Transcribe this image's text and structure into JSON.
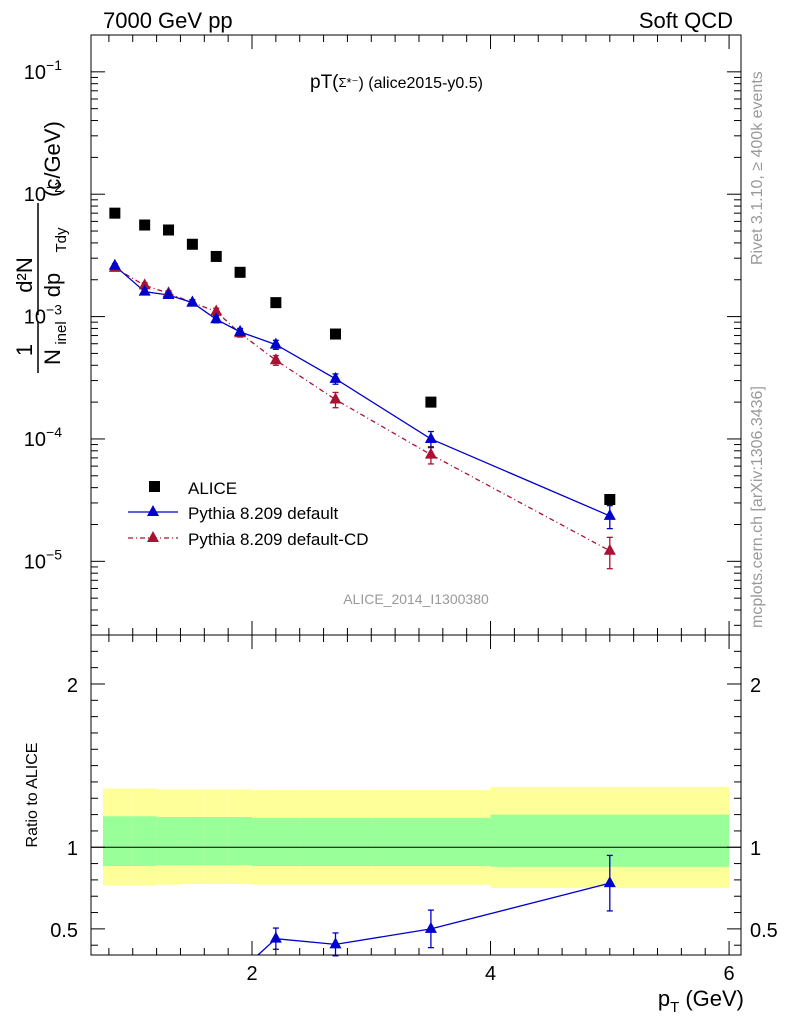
{
  "header": {
    "left": "7000 GeV pp",
    "right": "Soft QCD"
  },
  "side_labels": {
    "rivet": "Rivet 3.1.10, ≥ 400k events",
    "mcplots": "mcplots.cern.ch [arXiv:1306.3436]"
  },
  "watermark": "ALICE_2014_I1300380",
  "chart_data": [
    {
      "type": "scatter",
      "title": "pT(Σ*⁻) (alice2015-y0.5)",
      "title_main": "pT(",
      "title_sym": "Σ*⁻",
      "title_rest": ") (alice2015-y0.5)",
      "ylabel": "1/N_inel d²N/dp_T dy (c/GeV)",
      "ylabel_parts": {
        "frac1_num": "1",
        "frac1_den": "N",
        "frac1_den_sub": "inel",
        "frac2_num": "d²N",
        "frac2_den": "dp",
        "frac2_den_sub": "Tdy",
        "unit": "(c/GeV)"
      },
      "yscale": "log",
      "xlim": [
        0.65,
        6.1
      ],
      "ylim": [
        2.5e-06,
        0.2
      ],
      "y_ticks": [
        {
          "value": 1e-05,
          "base": "10",
          "exp": "−5"
        },
        {
          "value": 0.0001,
          "base": "10",
          "exp": "−4"
        },
        {
          "value": 0.001,
          "base": "10",
          "exp": "−3"
        },
        {
          "value": 0.01,
          "base": "10",
          "exp": "−2"
        },
        {
          "value": 0.1,
          "base": "10",
          "exp": "−1"
        }
      ],
      "legend_position": "bottom-left",
      "series": [
        {
          "name": "ALICE",
          "style": "square",
          "color": "#000000",
          "x": [
            0.85,
            1.1,
            1.3,
            1.5,
            1.7,
            1.9,
            2.2,
            2.7,
            3.5,
            5.0
          ],
          "y": [
            0.007,
            0.0056,
            0.0051,
            0.0039,
            0.0031,
            0.0023,
            0.0013,
            0.00072,
            0.0002,
            3.2e-05
          ]
        },
        {
          "name": "Pythia 8.209 default",
          "style": "triangle-line",
          "color": "#0000cc",
          "x": [
            0.85,
            1.1,
            1.3,
            1.5,
            1.7,
            1.9,
            2.2,
            2.7,
            3.5,
            5.0
          ],
          "y": [
            0.0026,
            0.0016,
            0.0015,
            0.0013,
            0.00095,
            0.00075,
            0.00059,
            0.00031,
            0.0001,
            2.35e-05
          ],
          "err": [
            0.0001,
            8e-05,
            8e-05,
            7e-05,
            6e-05,
            5e-05,
            5e-05,
            3e-05,
            1.5e-05,
            5e-06
          ]
        },
        {
          "name": "Pythia 8.209 default-CD",
          "style": "triangle-dashdot",
          "color": "#aa1133",
          "x": [
            0.85,
            1.1,
            1.3,
            1.5,
            1.7,
            1.9,
            2.2,
            2.7,
            3.5,
            5.0
          ],
          "y": [
            0.0025,
            0.0018,
            0.00155,
            0.0013,
            0.0011,
            0.00073,
            0.00044,
            0.00021,
            7.45e-05,
            1.22e-05
          ],
          "err": [
            0.0001,
            9e-05,
            8e-05,
            7e-05,
            7e-05,
            5e-05,
            4e-05,
            3e-05,
            1.2e-05,
            3.5e-06
          ]
        }
      ]
    },
    {
      "type": "scatter",
      "ylabel": "Ratio to ALICE",
      "xlabel": "p_T (GeV)",
      "xlabel_main": "p",
      "xlabel_sub": "T",
      "xlabel_unit": "(GeV)",
      "xlim": [
        0.65,
        6.1
      ],
      "ylim": [
        0.34,
        2.3
      ],
      "x_ticks": [
        2,
        4,
        6
      ],
      "y_ticks": [
        0.5,
        1,
        2
      ],
      "y_tick_labels": [
        "0.5",
        "1",
        "2"
      ],
      "bands": {
        "edges": [
          0.75,
          1.0,
          1.2,
          1.4,
          1.6,
          1.8,
          2.0,
          2.4,
          3.0,
          4.0,
          6.0
        ],
        "outer_low": [
          0.765,
          0.765,
          0.77,
          0.775,
          0.775,
          0.775,
          0.77,
          0.77,
          0.77,
          0.75
        ],
        "outer_high": [
          1.36,
          1.36,
          1.355,
          1.355,
          1.355,
          1.355,
          1.35,
          1.35,
          1.35,
          1.37
        ],
        "inner_low": [
          0.885,
          0.885,
          0.89,
          0.89,
          0.89,
          0.89,
          0.885,
          0.885,
          0.885,
          0.88
        ],
        "inner_high": [
          1.19,
          1.19,
          1.185,
          1.185,
          1.185,
          1.185,
          1.18,
          1.18,
          1.18,
          1.2
        ],
        "outer_color": "#ffff99",
        "inner_color": "#99ff99"
      },
      "series": [
        {
          "name": "Pythia 8.209 default",
          "color": "#0000cc",
          "x": [
            2.2,
            2.7,
            3.5,
            5.0
          ],
          "y": [
            0.44,
            0.405,
            0.5,
            0.78
          ],
          "err": [
            0.065,
            0.07,
            0.115,
            0.17
          ],
          "line_from_below_x": 2.05
        }
      ]
    }
  ]
}
